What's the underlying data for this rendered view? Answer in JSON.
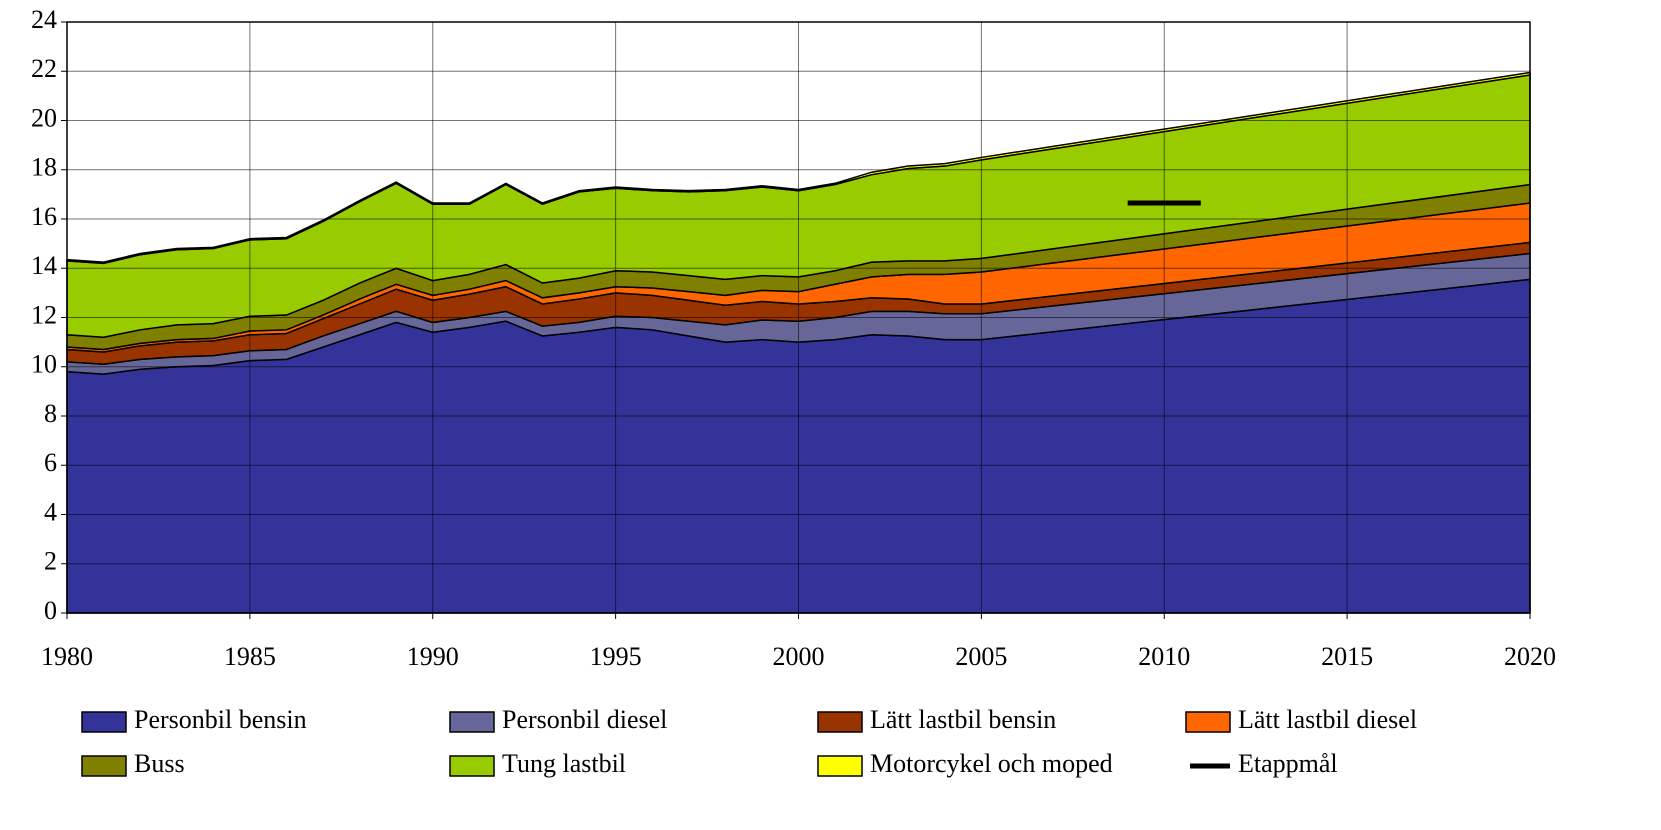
{
  "chart_data": {
    "type": "stacked_area",
    "x": [
      1980,
      1981,
      1982,
      1983,
      1984,
      1985,
      1986,
      1987,
      1988,
      1989,
      1990,
      1991,
      1992,
      1993,
      1994,
      1995,
      1996,
      1997,
      1998,
      1999,
      2000,
      2001,
      2002,
      2003,
      2004,
      2005,
      2020
    ],
    "xlim": [
      1980,
      2020
    ],
    "xticks": [
      1980,
      1985,
      1990,
      1995,
      2000,
      2005,
      2010,
      2015,
      2020
    ],
    "ylim": [
      0,
      24
    ],
    "yticks": [
      0,
      2,
      4,
      6,
      8,
      10,
      12,
      14,
      16,
      18,
      20,
      22,
      24
    ],
    "grid": true,
    "series": [
      {
        "name": "Personbil bensin",
        "color": "#333399",
        "values": [
          9.8,
          9.7,
          9.9,
          10.0,
          10.05,
          10.25,
          10.3,
          10.8,
          11.3,
          11.8,
          11.4,
          11.6,
          11.85,
          11.25,
          11.4,
          11.6,
          11.5,
          11.25,
          11.0,
          11.1,
          11.0,
          11.1,
          11.3,
          11.25,
          11.1,
          11.1,
          13.55
        ]
      },
      {
        "name": "Personbil diesel",
        "color": "#666699",
        "values": [
          0.4,
          0.4,
          0.4,
          0.4,
          0.4,
          0.4,
          0.4,
          0.45,
          0.45,
          0.45,
          0.4,
          0.4,
          0.4,
          0.4,
          0.4,
          0.45,
          0.5,
          0.6,
          0.7,
          0.8,
          0.85,
          0.9,
          0.95,
          1.0,
          1.05,
          1.05,
          1.05
        ]
      },
      {
        "name": "Lätt lastbil bensin",
        "color": "#993300",
        "values": [
          0.5,
          0.5,
          0.55,
          0.6,
          0.6,
          0.65,
          0.65,
          0.7,
          0.8,
          0.9,
          0.9,
          0.95,
          1.0,
          0.9,
          0.95,
          0.95,
          0.9,
          0.85,
          0.8,
          0.75,
          0.7,
          0.65,
          0.55,
          0.5,
          0.4,
          0.4,
          0.45
        ]
      },
      {
        "name": "Lätt lastbil diesel",
        "color": "#ff6600",
        "values": [
          0.1,
          0.1,
          0.1,
          0.1,
          0.1,
          0.15,
          0.15,
          0.15,
          0.2,
          0.2,
          0.2,
          0.2,
          0.25,
          0.25,
          0.25,
          0.25,
          0.3,
          0.35,
          0.4,
          0.45,
          0.5,
          0.7,
          0.85,
          1.0,
          1.2,
          1.3,
          1.6
        ]
      },
      {
        "name": "Buss",
        "color": "#808000",
        "values": [
          0.5,
          0.5,
          0.55,
          0.6,
          0.6,
          0.6,
          0.6,
          0.6,
          0.65,
          0.65,
          0.6,
          0.6,
          0.65,
          0.6,
          0.6,
          0.65,
          0.65,
          0.65,
          0.65,
          0.6,
          0.6,
          0.55,
          0.6,
          0.55,
          0.55,
          0.55,
          0.75
        ]
      },
      {
        "name": "Tung lastbil",
        "color": "#99cc00",
        "values": [
          3.0,
          3.0,
          3.05,
          3.05,
          3.05,
          3.1,
          3.1,
          3.2,
          3.3,
          3.45,
          3.1,
          2.85,
          3.25,
          3.2,
          3.5,
          3.35,
          3.3,
          3.4,
          3.6,
          3.6,
          3.5,
          3.5,
          3.55,
          3.75,
          3.85,
          4.0,
          4.45
        ]
      },
      {
        "name": "Motorcykel och moped",
        "color": "#ffff00",
        "values": [
          0.05,
          0.05,
          0.05,
          0.05,
          0.05,
          0.05,
          0.05,
          0.05,
          0.05,
          0.05,
          0.05,
          0.05,
          0.05,
          0.05,
          0.05,
          0.05,
          0.05,
          0.05,
          0.05,
          0.05,
          0.05,
          0.05,
          0.1,
          0.1,
          0.1,
          0.1,
          0.1
        ]
      }
    ],
    "target": {
      "name": "Etappmål",
      "color": "#000000",
      "x": [
        2009,
        2011
      ],
      "values": [
        16.65,
        16.65
      ]
    }
  }
}
